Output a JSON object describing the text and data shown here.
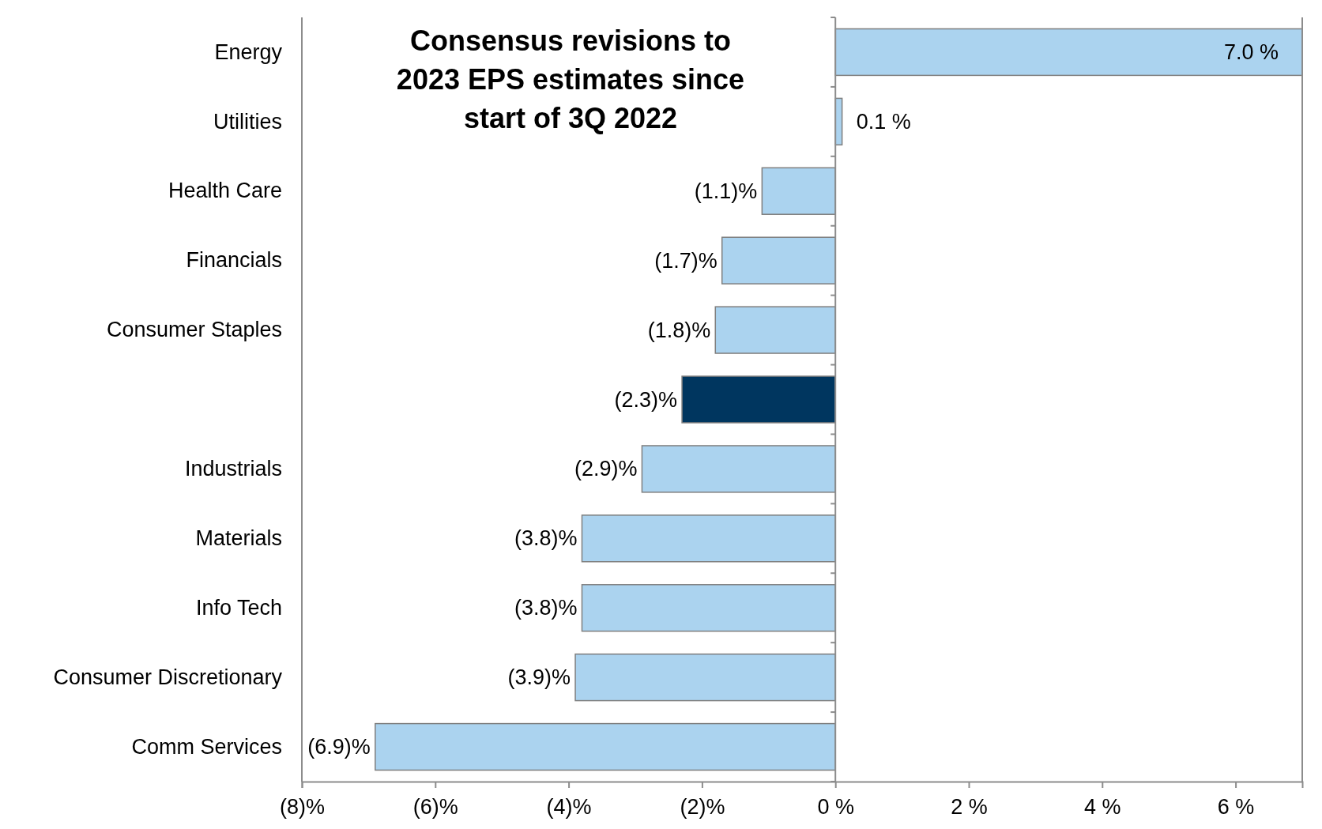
{
  "chart_data": {
    "type": "bar",
    "orientation": "horizontal",
    "title": "Consensus revisions to 2023 EPS estimates since start of 3Q 2022",
    "categories": [
      "Energy",
      "Utilities",
      "Health Care",
      "Financials",
      "Consumer Staples",
      null,
      "Industrials",
      "Materials",
      "Info Tech",
      "Consumer Discretionary",
      "Comm Services"
    ],
    "values": [
      7.0,
      0.1,
      -1.1,
      -1.7,
      -1.8,
      -2.3,
      -2.9,
      -3.8,
      -3.8,
      -3.9,
      -6.9
    ],
    "colors": [
      "#abd3ef",
      "#abd3ef",
      "#abd3ef",
      "#abd3ef",
      "#abd3ef",
      "#00365f",
      "#abd3ef",
      "#abd3ef",
      "#abd3ef",
      "#abd3ef",
      "#abd3ef"
    ],
    "value_labels": [
      "7.0 %",
      "0.1 %",
      "(1.1)%",
      "(1.7)%",
      "(1.8)%",
      "(2.3)%",
      "(2.9)%",
      "(3.8)%",
      "(3.8)%",
      "(3.9)%",
      "(6.9)%"
    ],
    "xlim": [
      -8,
      7
    ],
    "xticks": [
      {
        "value": -8,
        "label": "(8)%"
      },
      {
        "value": -6,
        "label": "(6)%"
      },
      {
        "value": -4,
        "label": "(4)%"
      },
      {
        "value": -2,
        "label": "(2)%"
      },
      {
        "value": 0,
        "label": "0 %"
      },
      {
        "value": 2,
        "label": "2 %"
      },
      {
        "value": 4,
        "label": "4 %"
      },
      {
        "value": 6,
        "label": "6 %"
      }
    ]
  }
}
